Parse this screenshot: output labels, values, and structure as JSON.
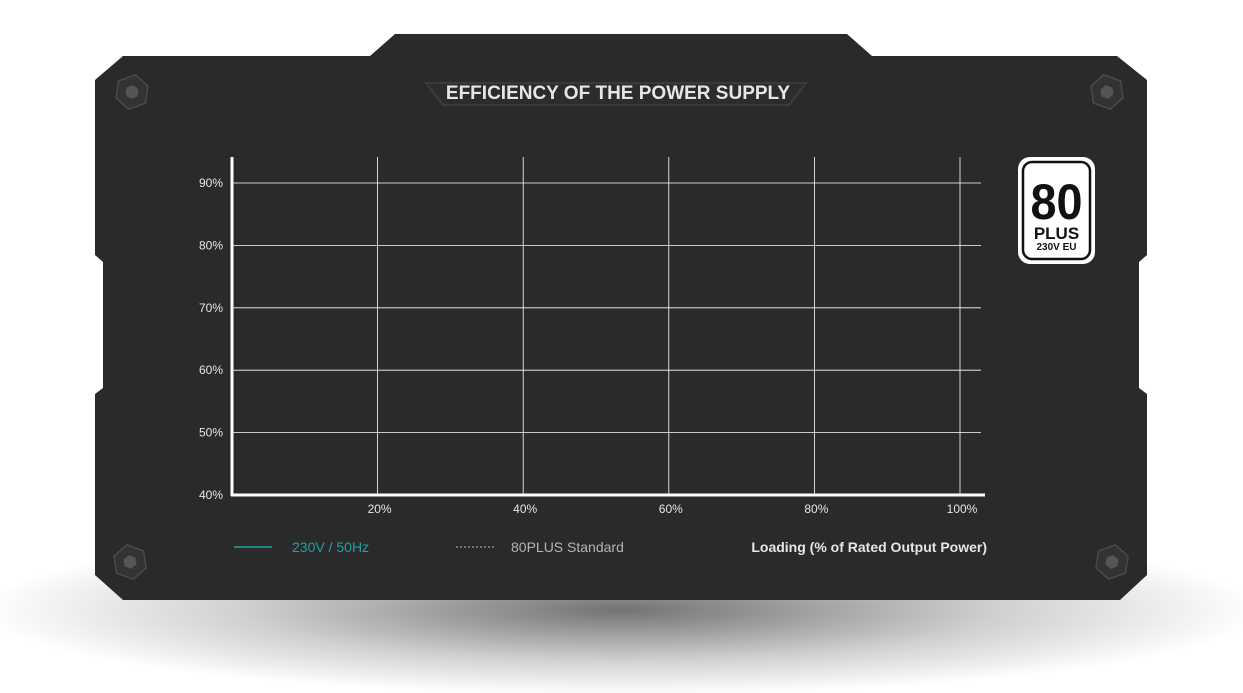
{
  "chart_data": {
    "type": "line",
    "title": "EFFICIENCY OF THE POWER SUPPLY",
    "xlabel": "Loading (% of Rated Output Power)",
    "ylabel": "",
    "xlim": [
      0,
      100
    ],
    "ylim": [
      40,
      95
    ],
    "x_ticks": [
      20,
      40,
      60,
      80,
      100
    ],
    "x_tick_labels": [
      "20%",
      "40%",
      "60%",
      "80%",
      "100%"
    ],
    "y_ticks": [
      40,
      50,
      60,
      70,
      80,
      90
    ],
    "y_tick_labels": [
      "40%",
      "50%",
      "60%",
      "70%",
      "80%",
      "90%"
    ],
    "grid": true,
    "legend_position": "bottom-left",
    "series": [
      {
        "name": "230V / 50Hz",
        "color": "#1fa3a3",
        "style": "solid",
        "x": [],
        "y": []
      },
      {
        "name": "80PLUS Standard",
        "color": "#bbbbbb",
        "style": "dashed",
        "x": [],
        "y": []
      }
    ]
  },
  "badge": {
    "number": "80",
    "brand": "PLUS",
    "region": "230V EU"
  },
  "colors": {
    "panel": "#2a2a2a",
    "title_plate": "#3a3a3a",
    "grid": "#ffffff",
    "text": "#e6e6e6",
    "accent": "#1fa3a3",
    "badge_bg": "#ffffff",
    "badge_fg": "#111111"
  }
}
